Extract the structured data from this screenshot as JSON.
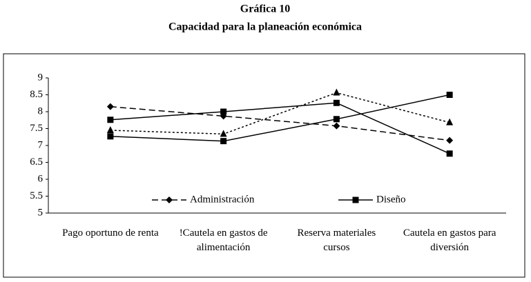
{
  "chart_data": {
    "type": "line",
    "title": "Gráfica 10",
    "subtitle": "Capacidad para la planeación económica",
    "categories": [
      "Pago oportuno de renta",
      "!Cautela en gastos de alimentación",
      "Reserva materiales cursos",
      "Cautela en gastos para diversión"
    ],
    "series": [
      {
        "name": "Administración",
        "color": "#000000",
        "dash": "dashed",
        "marker": "diamond",
        "values": [
          8.15,
          7.87,
          7.58,
          7.15
        ]
      },
      {
        "name": null,
        "color": "#000000",
        "dash": "dotted",
        "marker": "triangle",
        "values": [
          7.45,
          7.34,
          8.56,
          7.68
        ]
      },
      {
        "name": "Diseño",
        "color": "#000000",
        "dash": "solid",
        "marker": "square",
        "values": [
          7.76,
          8.0,
          8.26,
          6.76
        ]
      },
      {
        "name": null,
        "color": "#000000",
        "dash": "solid",
        "marker": "square",
        "values": [
          7.27,
          7.13,
          7.78,
          8.5
        ]
      }
    ],
    "ylim": [
      5,
      9
    ],
    "yticks": [
      5,
      5.5,
      6,
      6.5,
      7,
      7.5,
      8,
      8.5,
      9
    ],
    "grid": false
  }
}
